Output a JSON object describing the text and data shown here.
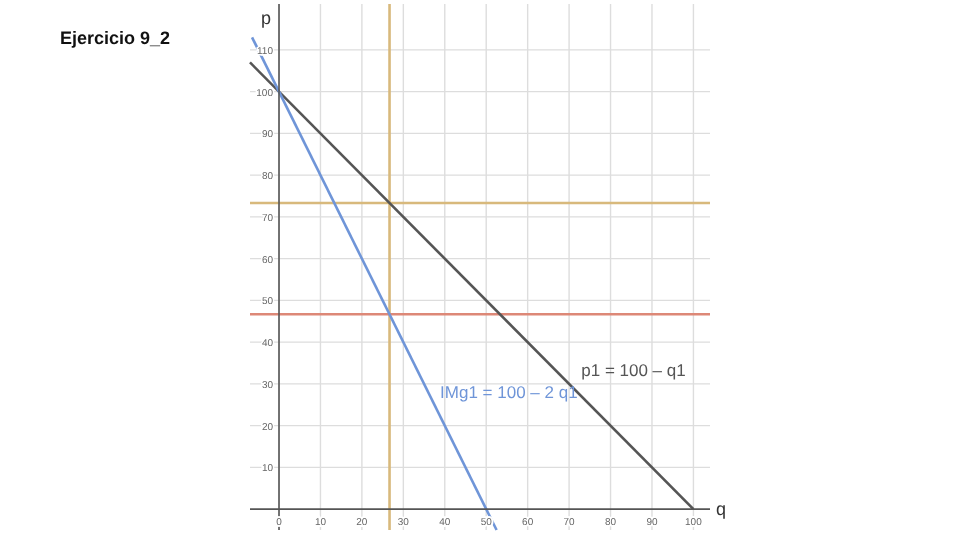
{
  "chart_data": {
    "type": "line",
    "title": "Ejercicio 9_2",
    "xlabel": "q",
    "ylabel": "p",
    "xlim": [
      -7,
      104
    ],
    "ylim": [
      -5,
      121
    ],
    "xticks": [
      0,
      10,
      20,
      30,
      40,
      50,
      60,
      70,
      80,
      90,
      100
    ],
    "yticks": [
      10,
      20,
      30,
      40,
      50,
      60,
      70,
      80,
      90,
      100,
      110
    ],
    "grid": true,
    "marker": "none",
    "line_style": "solid",
    "series": [
      {
        "name": "p1 = 100 – q1",
        "color": "#555555",
        "x": [
          -7,
          100
        ],
        "values": [
          107,
          0
        ]
      },
      {
        "name": "IMg1 = 100 – 2 q1",
        "color": "#6f95d8",
        "x": [
          -6.5,
          52.5
        ],
        "values": [
          113,
          -5
        ]
      }
    ],
    "ref_lines": [
      {
        "axis": "x",
        "value": 26.67,
        "color": "#d8b97c"
      },
      {
        "axis": "y",
        "value": 73.33,
        "color": "#d8b97c"
      },
      {
        "axis": "y",
        "value": 46.67,
        "color": "#dd8877"
      }
    ]
  }
}
